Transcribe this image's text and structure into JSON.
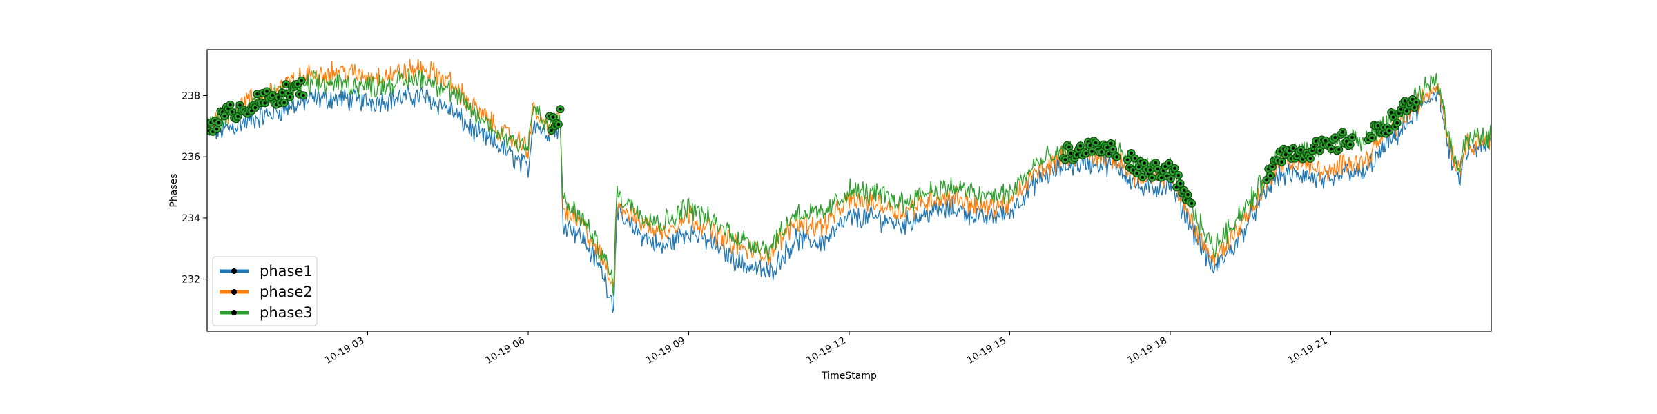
{
  "chart_data": {
    "type": "line",
    "xlabel": "TimeStamp",
    "ylabel": "Phases",
    "ylim": [
      230.3,
      239.5
    ],
    "xlim": [
      "10-19 00:00",
      "10-19 24:00"
    ],
    "yticks": [
      232,
      234,
      236,
      238
    ],
    "xticks": [
      "10-19 03",
      "10-19 06",
      "10-19 09",
      "10-19 12",
      "10-19 15",
      "10-19 18",
      "10-19 21"
    ],
    "legend_position": "lower-left",
    "grid": false,
    "x_hours": [
      0.0,
      0.5,
      1.0,
      1.5,
      2.0,
      2.5,
      3.0,
      3.5,
      4.0,
      4.5,
      5.0,
      5.5,
      6.0,
      6.1,
      6.3,
      6.6,
      6.65,
      7.0,
      7.4,
      7.6,
      7.65,
      8.0,
      8.5,
      9.0,
      9.5,
      10.0,
      10.5,
      11.0,
      11.5,
      12.0,
      12.5,
      13.0,
      13.5,
      14.0,
      14.5,
      15.0,
      15.5,
      16.0,
      16.5,
      17.0,
      17.5,
      18.0,
      18.4,
      18.8,
      19.2,
      19.6,
      20.0,
      20.5,
      21.0,
      21.3,
      21.6,
      22.0,
      22.5,
      23.0,
      23.2,
      23.4,
      23.5,
      24.0
    ],
    "series": [
      {
        "name": "phase1",
        "color": "#1f77b4",
        "values": [
          236.7,
          237.0,
          237.3,
          237.6,
          237.9,
          237.9,
          237.8,
          237.9,
          238.0,
          237.6,
          236.8,
          236.3,
          235.6,
          237.2,
          236.8,
          236.9,
          233.9,
          233.4,
          232.2,
          231.1,
          234.1,
          233.6,
          233.0,
          233.6,
          233.1,
          232.5,
          232.2,
          233.3,
          233.2,
          234.0,
          234.0,
          233.8,
          234.2,
          234.3,
          234.0,
          234.2,
          235.2,
          235.7,
          235.8,
          235.7,
          234.9,
          235.1,
          233.7,
          232.3,
          233.1,
          234.3,
          235.4,
          235.4,
          235.1,
          235.6,
          235.4,
          236.3,
          237.2,
          238.2,
          236.2,
          235.2,
          236.1,
          236.4
        ]
      },
      {
        "name": "phase2",
        "color": "#ff7f0e",
        "values": [
          237.0,
          237.6,
          238.0,
          238.4,
          238.7,
          238.8,
          238.6,
          238.7,
          238.9,
          238.5,
          237.6,
          236.8,
          236.3,
          237.6,
          237.0,
          237.2,
          234.3,
          233.8,
          232.6,
          231.7,
          234.5,
          234.0,
          233.5,
          234.1,
          233.5,
          233.0,
          232.8,
          233.9,
          233.7,
          234.6,
          234.5,
          234.2,
          234.6,
          234.7,
          234.3,
          234.5,
          235.5,
          236.0,
          236.1,
          235.9,
          235.2,
          235.4,
          233.9,
          232.6,
          233.5,
          234.5,
          235.8,
          235.8,
          235.4,
          235.9,
          235.8,
          236.7,
          237.5,
          238.4,
          236.5,
          235.5,
          236.4,
          236.6
        ]
      },
      {
        "name": "phase3",
        "color": "#2ca02c",
        "values": [
          237.0,
          237.5,
          237.8,
          238.1,
          238.4,
          238.4,
          238.3,
          238.4,
          238.6,
          238.2,
          237.4,
          236.7,
          236.4,
          237.7,
          237.0,
          237.3,
          234.5,
          234.0,
          232.8,
          231.8,
          234.8,
          234.3,
          233.8,
          234.4,
          233.8,
          233.3,
          233.0,
          234.2,
          234.1,
          234.9,
          234.8,
          234.5,
          234.9,
          235.0,
          234.7,
          234.8,
          235.8,
          236.1,
          236.3,
          236.2,
          235.6,
          235.6,
          234.3,
          233.0,
          233.9,
          234.8,
          236.1,
          236.2,
          236.3,
          236.6,
          236.5,
          237.0,
          237.7,
          238.6,
          236.7,
          235.6,
          236.5,
          236.7
        ]
      }
    ]
  }
}
